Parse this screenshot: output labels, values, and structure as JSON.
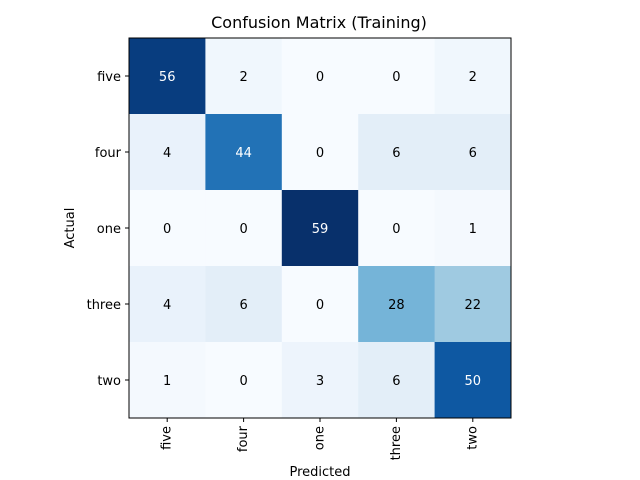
{
  "chart_data": {
    "type": "heatmap",
    "title": "Confusion Matrix (Training)",
    "xlabel": "Predicted",
    "ylabel": "Actual",
    "x_categories": [
      "five",
      "four",
      "one",
      "three",
      "two"
    ],
    "y_categories": [
      "five",
      "four",
      "one",
      "three",
      "two"
    ],
    "values": [
      [
        56,
        2,
        0,
        0,
        2
      ],
      [
        4,
        44,
        0,
        6,
        6
      ],
      [
        0,
        0,
        59,
        0,
        1
      ],
      [
        4,
        6,
        0,
        28,
        22
      ],
      [
        1,
        0,
        3,
        6,
        50
      ]
    ],
    "colormap": "Blues",
    "value_range": [
      0,
      59
    ],
    "grid": false,
    "legend": "none"
  }
}
